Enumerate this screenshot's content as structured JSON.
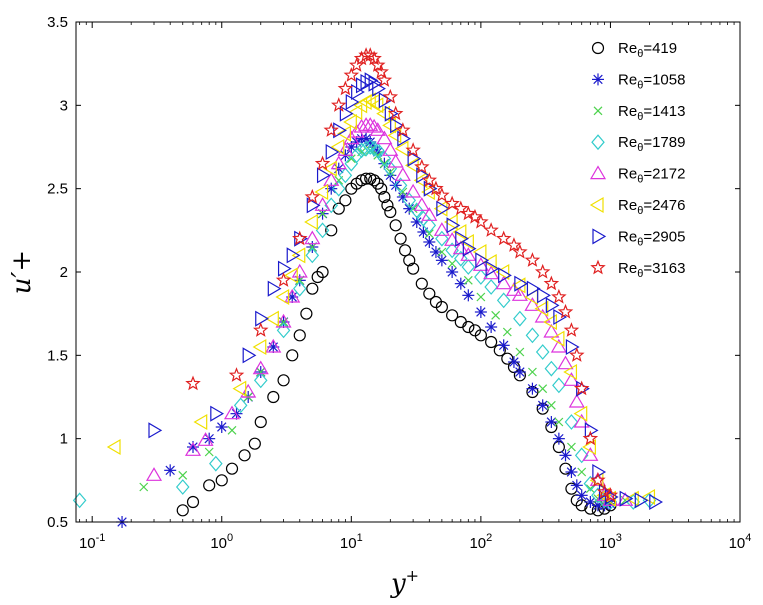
{
  "chart_data": {
    "type": "scatter",
    "title": "",
    "xlabel": "y⁺",
    "ylabel": "u′+",
    "x_scale": "log",
    "xlim": [
      0.075,
      10000
    ],
    "ylim": [
      0.5,
      3.5
    ],
    "x_ticks": [
      {
        "value": 0.1,
        "base": "10",
        "exp": "-1"
      },
      {
        "value": 1,
        "base": "10",
        "exp": "0"
      },
      {
        "value": 10,
        "base": "10",
        "exp": "1"
      },
      {
        "value": 100,
        "base": "10",
        "exp": "2"
      },
      {
        "value": 1000,
        "base": "10",
        "exp": "3"
      },
      {
        "value": 10000,
        "base": "10",
        "exp": "4"
      }
    ],
    "y_ticks": [
      {
        "value": 0.5,
        "label": "0.5"
      },
      {
        "value": 1,
        "label": "1"
      },
      {
        "value": 1.5,
        "label": "1.5"
      },
      {
        "value": 2,
        "label": "2"
      },
      {
        "value": 2.5,
        "label": "2.5"
      },
      {
        "value": 3,
        "label": "3"
      },
      {
        "value": 3.5,
        "label": "3.5"
      }
    ],
    "grid": false,
    "legend_position": "top-right",
    "series": [
      {
        "name_main": "Re",
        "name_sub": "θ",
        "name_value": "=419",
        "marker": "circle",
        "color": "#000000",
        "x": [
          0.5,
          0.6,
          0.8,
          1.0,
          1.2,
          1.5,
          1.8,
          2.0,
          2.5,
          3.0,
          3.5,
          4.0,
          4.5,
          5.0,
          5.5,
          6.0,
          7.0,
          8.0,
          9.0,
          10,
          11,
          12,
          13,
          14,
          15,
          16,
          17,
          18,
          19,
          20,
          22,
          24,
          26,
          28,
          30,
          35,
          40,
          45,
          50,
          60,
          70,
          80,
          90,
          100,
          120,
          140,
          160,
          180,
          200,
          250,
          300,
          350,
          400,
          450,
          500,
          550,
          600,
          700,
          800,
          900,
          1000
        ],
        "y": [
          0.57,
          0.62,
          0.72,
          0.75,
          0.82,
          0.9,
          0.97,
          1.1,
          1.25,
          1.35,
          1.5,
          1.62,
          1.75,
          1.9,
          1.97,
          2.0,
          2.25,
          2.38,
          2.43,
          2.5,
          2.53,
          2.55,
          2.56,
          2.56,
          2.55,
          2.53,
          2.5,
          2.45,
          2.4,
          2.36,
          2.28,
          2.2,
          2.13,
          2.07,
          2.02,
          1.93,
          1.87,
          1.82,
          1.79,
          1.74,
          1.7,
          1.67,
          1.65,
          1.62,
          1.58,
          1.53,
          1.48,
          1.43,
          1.38,
          1.28,
          1.18,
          1.07,
          0.95,
          0.82,
          0.7,
          0.63,
          0.6,
          0.58,
          0.57,
          0.58,
          0.6
        ]
      },
      {
        "name_main": "Re",
        "name_sub": "θ",
        "name_value": "=1058",
        "marker": "asterisk",
        "color": "#1a1acc",
        "x": [
          0.17,
          0.4,
          0.6,
          0.8,
          1.0,
          1.3,
          1.6,
          2.0,
          2.5,
          3.0,
          3.5,
          4.0,
          5.0,
          6.0,
          7.0,
          8.0,
          9.0,
          10,
          11,
          12,
          13,
          14,
          15,
          16,
          18,
          20,
          22,
          25,
          28,
          32,
          36,
          40,
          45,
          50,
          60,
          70,
          80,
          100,
          120,
          150,
          180,
          200,
          250,
          300,
          350,
          400,
          450,
          500,
          550,
          600,
          700,
          800,
          900,
          1000
        ],
        "y": [
          0.5,
          0.81,
          0.95,
          1.0,
          1.07,
          1.15,
          1.25,
          1.4,
          1.55,
          1.7,
          1.85,
          1.95,
          2.15,
          2.35,
          2.5,
          2.62,
          2.7,
          2.75,
          2.78,
          2.8,
          2.8,
          2.78,
          2.75,
          2.72,
          2.65,
          2.58,
          2.52,
          2.45,
          2.38,
          2.3,
          2.24,
          2.18,
          2.12,
          2.07,
          2.0,
          1.93,
          1.86,
          1.76,
          1.67,
          1.56,
          1.46,
          1.4,
          1.3,
          1.2,
          1.1,
          1.0,
          0.9,
          0.8,
          0.72,
          0.66,
          0.62,
          0.6,
          0.6,
          0.61
        ]
      },
      {
        "name_main": "Re",
        "name_sub": "θ",
        "name_value": "=1413",
        "marker": "cross",
        "color": "#4cd24c",
        "x": [
          0.25,
          0.5,
          0.8,
          1.2,
          1.6,
          2.0,
          3.0,
          4.0,
          5.0,
          6.0,
          8.0,
          10,
          12,
          14,
          16,
          18,
          20,
          25,
          30,
          40,
          50,
          60,
          80,
          100,
          130,
          160,
          200,
          250,
          300,
          350,
          400,
          500,
          600,
          700,
          800,
          900,
          1000,
          1300
        ],
        "y": [
          0.71,
          0.78,
          0.92,
          1.05,
          1.25,
          1.4,
          1.7,
          1.95,
          2.15,
          2.35,
          2.55,
          2.68,
          2.72,
          2.73,
          2.7,
          2.65,
          2.6,
          2.48,
          2.38,
          2.23,
          2.12,
          2.05,
          1.95,
          1.85,
          1.74,
          1.64,
          1.52,
          1.4,
          1.3,
          1.2,
          1.1,
          0.95,
          0.8,
          0.7,
          0.64,
          0.62,
          0.62,
          0.63
        ]
      },
      {
        "name_main": "Re",
        "name_sub": "θ",
        "name_value": "=1789",
        "marker": "diamond",
        "color": "#33cccc",
        "x": [
          0.08,
          0.5,
          0.9,
          1.4,
          2.0,
          3.0,
          4.0,
          5.0,
          6.0,
          7.0,
          8.0,
          9.0,
          10,
          11,
          12,
          13,
          14,
          15,
          16,
          18,
          20,
          24,
          28,
          32,
          36,
          40,
          50,
          60,
          70,
          80,
          100,
          120,
          150,
          200,
          250,
          300,
          350,
          400,
          500,
          600,
          700,
          800,
          900,
          1000,
          1500,
          2000
        ],
        "y": [
          0.63,
          0.71,
          0.85,
          1.2,
          1.35,
          1.65,
          1.9,
          2.1,
          2.25,
          2.4,
          2.5,
          2.58,
          2.65,
          2.7,
          2.73,
          2.74,
          2.75,
          2.74,
          2.73,
          2.68,
          2.62,
          2.52,
          2.43,
          2.37,
          2.32,
          2.28,
          2.2,
          2.13,
          2.08,
          2.03,
          1.97,
          1.91,
          1.83,
          1.72,
          1.62,
          1.52,
          1.42,
          1.32,
          1.1,
          0.9,
          0.73,
          0.66,
          0.63,
          0.62,
          0.62,
          0.63
        ]
      },
      {
        "name_main": "Re",
        "name_sub": "θ",
        "name_value": "=2172",
        "marker": "triangle-up",
        "color": "#dd33dd",
        "x": [
          0.3,
          0.6,
          0.75,
          1.2,
          1.6,
          2.0,
          2.5,
          3.0,
          3.5,
          4.0,
          5.0,
          6.0,
          7.0,
          8.0,
          9.0,
          10,
          11,
          12,
          13,
          14,
          15,
          16,
          18,
          20,
          22,
          25,
          30,
          35,
          40,
          50,
          60,
          70,
          80,
          100,
          120,
          150,
          180,
          200,
          250,
          300,
          350,
          400,
          450,
          500,
          550,
          600,
          700,
          800,
          900,
          1000,
          1300
        ],
        "y": [
          0.78,
          0.93,
          0.99,
          1.15,
          1.28,
          1.42,
          1.55,
          1.7,
          1.85,
          2.0,
          2.2,
          2.4,
          2.55,
          2.65,
          2.73,
          2.8,
          2.84,
          2.87,
          2.88,
          2.88,
          2.87,
          2.85,
          2.8,
          2.73,
          2.66,
          2.58,
          2.48,
          2.4,
          2.34,
          2.25,
          2.19,
          2.14,
          2.1,
          2.04,
          1.99,
          1.93,
          1.89,
          1.86,
          1.8,
          1.73,
          1.64,
          1.55,
          1.45,
          1.35,
          1.22,
          1.1,
          0.9,
          0.75,
          0.66,
          0.63,
          0.63
        ]
      },
      {
        "name_main": "Re",
        "name_sub": "θ",
        "name_value": "=2476",
        "marker": "triangle-left",
        "color": "#f0e000",
        "x": [
          0.15,
          0.7,
          1.4,
          2.0,
          2.5,
          3.0,
          3.5,
          4.0,
          5.0,
          6.0,
          7.0,
          8.0,
          9.0,
          10,
          11,
          12,
          13,
          14,
          15,
          16,
          18,
          20,
          22,
          25,
          30,
          35,
          40,
          50,
          60,
          70,
          80,
          100,
          120,
          150,
          200,
          250,
          300,
          350,
          400,
          500,
          600,
          700,
          800,
          900,
          1000,
          1500,
          2000
        ],
        "y": [
          0.95,
          1.1,
          1.3,
          1.55,
          1.72,
          1.85,
          1.98,
          2.1,
          2.3,
          2.48,
          2.62,
          2.75,
          2.83,
          2.9,
          2.96,
          3.0,
          3.02,
          3.03,
          3.02,
          3.0,
          2.95,
          2.88,
          2.82,
          2.74,
          2.64,
          2.55,
          2.48,
          2.38,
          2.3,
          2.24,
          2.18,
          2.12,
          2.06,
          2.0,
          1.92,
          1.85,
          1.78,
          1.7,
          1.6,
          1.4,
          1.15,
          0.95,
          0.75,
          0.66,
          0.64,
          0.64,
          0.65
        ]
      },
      {
        "name_main": "Re",
        "name_sub": "θ",
        "name_value": "=2905",
        "marker": "triangle-right",
        "color": "#1a1acc",
        "x": [
          0.3,
          0.9,
          1.6,
          2.0,
          2.5,
          3.0,
          3.5,
          4.0,
          5.0,
          6.0,
          7.0,
          8.0,
          9.0,
          10,
          11,
          12,
          13,
          14,
          15,
          16,
          18,
          20,
          22,
          25,
          30,
          35,
          40,
          50,
          60,
          70,
          80,
          100,
          120,
          150,
          200,
          250,
          300,
          350,
          400,
          500,
          600,
          700,
          800,
          900,
          1000,
          1300,
          1700,
          2200
        ],
        "y": [
          1.05,
          1.15,
          1.5,
          1.72,
          1.9,
          2.02,
          2.1,
          2.2,
          2.4,
          2.58,
          2.72,
          2.85,
          2.95,
          3.02,
          3.08,
          3.12,
          3.14,
          3.15,
          3.13,
          3.1,
          3.03,
          2.95,
          2.88,
          2.8,
          2.68,
          2.58,
          2.5,
          2.38,
          2.28,
          2.2,
          2.14,
          2.07,
          2.02,
          1.98,
          1.93,
          1.9,
          1.86,
          1.8,
          1.73,
          1.55,
          1.3,
          1.05,
          0.8,
          0.68,
          0.65,
          0.64,
          0.63,
          0.62
        ]
      },
      {
        "name_main": "Re",
        "name_sub": "θ",
        "name_value": "=3163",
        "marker": "star",
        "color": "#e02020",
        "x": [
          0.6,
          1.3,
          2.0,
          3.0,
          4.0,
          5.0,
          6.0,
          7.0,
          8.0,
          9.0,
          10,
          11,
          12,
          13,
          14,
          15,
          16,
          17,
          18,
          20,
          22,
          25,
          30,
          35,
          40,
          45,
          50,
          60,
          70,
          80,
          90,
          100,
          120,
          150,
          180,
          200,
          250,
          300,
          350,
          400,
          450,
          500,
          550,
          600,
          700,
          800,
          900,
          1000
        ],
        "y": [
          1.33,
          1.38,
          1.65,
          1.95,
          2.2,
          2.45,
          2.65,
          2.85,
          3.0,
          3.1,
          3.18,
          3.24,
          3.28,
          3.3,
          3.3,
          3.28,
          3.24,
          3.2,
          3.15,
          3.05,
          2.95,
          2.85,
          2.73,
          2.63,
          2.55,
          2.5,
          2.46,
          2.41,
          2.38,
          2.35,
          2.33,
          2.3,
          2.25,
          2.2,
          2.16,
          2.12,
          2.07,
          2.0,
          1.93,
          1.85,
          1.76,
          1.65,
          1.5,
          1.3,
          1.0,
          0.75,
          0.68,
          0.66
        ]
      }
    ]
  }
}
